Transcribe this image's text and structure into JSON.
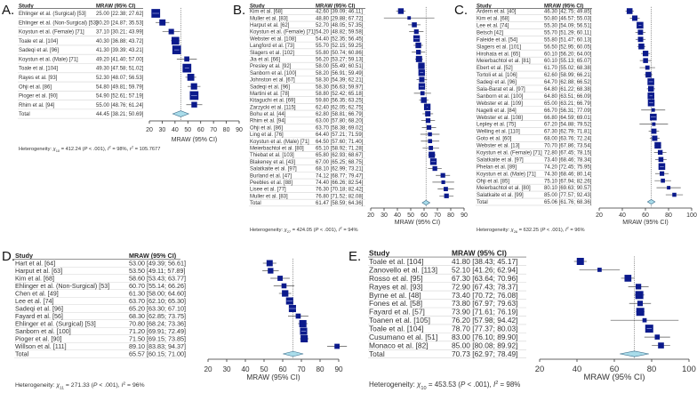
{
  "symbols": {
    "chi": "χ",
    "p": "P",
    "i": "I",
    "tau": "τ",
    "sq": "2",
    "prefix": "Heterogeneity: "
  },
  "chart_data": [
    {
      "type": "forest",
      "label": "A.",
      "header": {
        "study": "Study",
        "mraw": "MRAW (95% CI)"
      },
      "xlabel": "MRAW (95% CI)",
      "xlim": [
        20,
        90
      ],
      "ticks": [
        20,
        30,
        40,
        50,
        60,
        70,
        80,
        90
      ],
      "rows": [
        {
          "study": "Ehlinger et al. (Surgical) [53]",
          "mraw": "25.00 [22.38; 27.62]"
        },
        {
          "study": "Ehlinger et al. (Non-Surgical) [53]",
          "mraw": "30.20 [24.87; 35.53]"
        },
        {
          "study": "Koystun et al. (Female) [71]",
          "mraw": "37.10 [30.21; 43.99]"
        },
        {
          "study": "Toale et al. [104]",
          "mraw": "40.30 [36.88; 43.72]"
        },
        {
          "study": "Sadeqi et al. [96]",
          "mraw": "41.30 [39.39; 43.21]"
        },
        {
          "study": "Koystun et al. (Male) [71]",
          "mraw": "49.20 [41.40; 57.00]"
        },
        {
          "study": "Toale et al. [104]",
          "mraw": "49.30 [47.58; 51.02]"
        },
        {
          "study": "Rayes et al. [93]",
          "mraw": "52.30 [48.07; 56.53]"
        },
        {
          "study": "Ohji et al. [86]",
          "mraw": "54.80 [49.81; 59.79]"
        },
        {
          "study": "Pioger et al. [90]",
          "mraw": "54.90 [52.61; 57.19]"
        },
        {
          "study": "Rhim et al. [94]",
          "mraw": "55.00 [48.76; 61.24]"
        }
      ],
      "total": {
        "study": "Total",
        "mraw": "44.45 [38.21; 50.69]"
      },
      "heterogeneity": {
        "df": "10",
        "chi2": "412.24",
        "p": "< .001",
        "i2": "98%",
        "tau2": "105.7677"
      }
    },
    {
      "type": "forest",
      "label": "B.",
      "header": {
        "study": "Study",
        "mraw": "MRAW (95% CI)"
      },
      "xlabel": "MRAW (95% CI)",
      "xlim": [
        20,
        90
      ],
      "ticks": [
        20,
        30,
        40,
        50,
        60,
        70,
        80,
        90
      ],
      "rows": [
        {
          "study": "Kim et al. [68]",
          "mraw": "42.60 [39.09; 46.11]"
        },
        {
          "study": "Muller et al. [83]",
          "mraw": "48.80 [29.88; 67.72]"
        },
        {
          "study": "Harput et al. [62]",
          "mraw": "52.70 [48.05; 57.35]"
        },
        {
          "study": "Koystun et al. (Female) [71]",
          "mraw": "54.20 [48.82; 59.58]"
        },
        {
          "study": "Webster et al. [108]",
          "mraw": "54.40 [52.35; 56.45]"
        },
        {
          "study": "Langford et al. [73]",
          "mraw": "55.70 [52.15; 59.25]"
        },
        {
          "study": "Slagers et al. [102]",
          "mraw": "55.80 [50.74; 60.86]"
        },
        {
          "study": "Jia et al. [66]",
          "mraw": "56.20 [53.27; 59.13]"
        },
        {
          "study": "Presley et al. [92]",
          "mraw": "58.00 [55.49; 60.51]"
        },
        {
          "study": "Sanborn et al. [100]",
          "mraw": "58.20 [56.91; 59.49]"
        },
        {
          "study": "Johnston et al. [67]",
          "mraw": "58.30 [54.39; 62.21]"
        },
        {
          "study": "Sadeqi et al. [96]",
          "mraw": "58.30 [56.63; 59.97]"
        },
        {
          "study": "Martini et al. [78]",
          "mraw": "58.80 [52.42; 65.18]"
        },
        {
          "study": "Kitaguchi et al. [69]",
          "mraw": "59.80 [56.35; 63.25]"
        },
        {
          "study": "Zarzycki et al. [115]",
          "mraw": "62.40 [62.05; 62.75]"
        },
        {
          "study": "Bohu et al. [44]",
          "mraw": "62.80 [58.81; 66.79]"
        },
        {
          "study": "Rhim et al. [94]",
          "mraw": "63.00 [57.80; 68.20]"
        },
        {
          "study": "Ohji et al. [86]",
          "mraw": "63.70 [58.38; 69.02]"
        },
        {
          "study": "Ling et al. [76]",
          "mraw": "64.40 [57.21; 71.59]"
        },
        {
          "study": "Koystun et al. (Male) [71]",
          "mraw": "64.50 [57.60; 71.40]"
        },
        {
          "study": "Meierbachtol et al. [80]",
          "mraw": "65.10 [58.92; 71.28]"
        },
        {
          "study": "Thiebat et al. [103]",
          "mraw": "65.80 [62.93; 68.67]"
        },
        {
          "study": "Blakeney et al. [43]",
          "mraw": "67.00 [65.25; 68.75]"
        },
        {
          "study": "Salatkaite et al. [97]",
          "mraw": "68.10 [62.99; 73.21]"
        },
        {
          "study": "Burland et al. [47]",
          "mraw": "74.12 [68.77; 79.47]"
        },
        {
          "study": "Peebles et al. [88]",
          "mraw": "74.40 [66.26; 82.54]"
        },
        {
          "study": "Lisee et al. [77]",
          "mraw": "76.30 [70.18; 82.42]"
        },
        {
          "study": "Muller et al. [83]",
          "mraw": "76.80 [71.52; 82.08]"
        }
      ],
      "total": {
        "study": "Total",
        "mraw": "61.47 [58.59; 64.36]"
      },
      "heterogeneity": {
        "df": "27",
        "chi2": "424.05",
        "p": "< .001",
        "i2": "94%"
      }
    },
    {
      "type": "forest",
      "label": "C.",
      "header": {
        "study": "Study",
        "mraw": "MRAW (95% CI)"
      },
      "xlabel": "MRAW (95% CI)",
      "xlim": [
        20,
        100
      ],
      "ticks": [
        20,
        40,
        60,
        80,
        100
      ],
      "rows": [
        {
          "study": "Ardern et al. [40]",
          "mraw": "46.30 [42.75; 49.85]"
        },
        {
          "study": "Kim et al. [68]",
          "mraw": "50.80 [46.57; 55.03]"
        },
        {
          "study": "Lee et al. [74]",
          "mraw": "55.30 [54.09; 56.51]"
        },
        {
          "study": "Betsch [42]",
          "mraw": "55.70 [51.29; 60.11]"
        },
        {
          "study": "Faleide et al. [54]",
          "mraw": "55.80 [51.47; 60.13]"
        },
        {
          "study": "Slagers et al. [101]",
          "mraw": "56.50 [52.95; 60.05]"
        },
        {
          "study": "Hirohata et al. [65]",
          "mraw": "60.10 [56.20; 64.00]"
        },
        {
          "study": "Meierbachtol et al. [81]",
          "mraw": "60.10 [55.13; 65.07]"
        },
        {
          "study": "Ebert et al. [52]",
          "mraw": "61.70 [55.02; 68.38]"
        },
        {
          "study": "Tortoli et al. [106]",
          "mraw": "62.60 [58.99; 66.21]"
        },
        {
          "study": "Sadeqi et al. [96]",
          "mraw": "64.70 [62.88; 66.52]"
        },
        {
          "study": "Sala-Barat et al. [97]",
          "mraw": "64.80 [61.22; 68.38]"
        },
        {
          "study": "Sanborn et al. [100]",
          "mraw": "64.80 [63.51; 66.09]"
        },
        {
          "study": "Webster et al. [109]",
          "mraw": "65.00 [63.21; 66.79]"
        },
        {
          "study": "Nagelli et al. [84]",
          "mraw": "66.70 [56.31; 77.09]"
        },
        {
          "study": "Webster et al. [108]",
          "mraw": "66.80 [64.59; 69.01]"
        },
        {
          "study": "Lepley et al. [75]",
          "mraw": "67.20 [54.88; 79.52]"
        },
        {
          "study": "Welling et al. [110]",
          "mraw": "67.30 [62.79; 71.81]"
        },
        {
          "study": "Goto et al. [60]",
          "mraw": "68.00 [63.76; 72.24]"
        },
        {
          "study": "Webster et al. [13]",
          "mraw": "70.70 [67.86; 73.54]"
        },
        {
          "study": "Koystun et al. (Female) [71]",
          "mraw": "72.80 [67.45; 78.15]"
        },
        {
          "study": "Salatkaite et al. [97]",
          "mraw": "73.40 [68.46; 78.34]"
        },
        {
          "study": "Phelan et al. [89]",
          "mraw": "74.20 [72.45; 75.95]"
        },
        {
          "study": "Koystun et al. (Male) [71]",
          "mraw": "74.30 [68.46; 80.14]"
        },
        {
          "study": "Ohji et al. [85]",
          "mraw": "75.10 [67.94; 82.26]"
        },
        {
          "study": "Meierbachtol et al. [80]",
          "mraw": "80.10 [69.63; 90.57]"
        },
        {
          "study": "Salatkaite et al. [99]",
          "mraw": "85.00 [77.57; 92.43]"
        }
      ],
      "total": {
        "study": "Total",
        "mraw": "65.06 [61.76; 68.36]"
      },
      "heterogeneity": {
        "df": "26",
        "chi2": "632.25",
        "p": "< .001",
        "i2": "96%"
      }
    },
    {
      "type": "forest",
      "label": "D.",
      "header": {
        "study": "Study",
        "mraw": "MRAW (95% CI)"
      },
      "xlabel": "MRAW (95% CI)",
      "xlim": [
        20,
        90
      ],
      "ticks": [
        20,
        30,
        40,
        50,
        60,
        70,
        80,
        90
      ],
      "rows": [
        {
          "study": "Hart et al. [64]",
          "mraw": "53.00 [49.39; 56.61]"
        },
        {
          "study": "Harput et al. [63]",
          "mraw": "53.50 [49.11; 57.89]"
        },
        {
          "study": "Kim et al. [68]",
          "mraw": "58.60 [53.43; 63.77]"
        },
        {
          "study": "Ehlinger et al. (Non-Surgical) [53]",
          "mraw": "60.70 [55.14; 66.26]"
        },
        {
          "study": "Chen et al. [49]",
          "mraw": "61.30 [58.00; 64.60]"
        },
        {
          "study": "Lee et al. [74]",
          "mraw": "63.70 [62.10; 65.30]"
        },
        {
          "study": "Sadeqi et al. [96]",
          "mraw": "65.20 [63.30; 67.10]"
        },
        {
          "study": "Fayard et al. [56]",
          "mraw": "68.30 [62.85; 73.75]"
        },
        {
          "study": "Ehlinger et al. (Surgical) [53]",
          "mraw": "70.80 [68.24; 73.36]"
        },
        {
          "study": "Sanborn et al. [100]",
          "mraw": "71.20 [69.91; 72.49]"
        },
        {
          "study": "Pioger et al. [90]",
          "mraw": "71.50 [69.15; 73.85]"
        },
        {
          "study": "Willson et al. [111]",
          "mraw": "89.10 [83.83; 94.37]"
        }
      ],
      "total": {
        "study": "Total",
        "mraw": "65.57 [60.15; 71.00]"
      },
      "heterogeneity": {
        "df": "11",
        "chi2": "271.33",
        "p": "< .001",
        "i2": "96%"
      }
    },
    {
      "type": "forest",
      "label": "E.",
      "header": {
        "study": "Study",
        "mraw": "MRAW (95% CI)"
      },
      "xlabel": "MRAW (95% CI)",
      "xlim": [
        20,
        100
      ],
      "ticks": [
        20,
        40,
        60,
        80,
        100
      ],
      "rows": [
        {
          "study": "Toale et al. [104]",
          "mraw": "41.80 [38.43; 45.17]"
        },
        {
          "study": "Zanovello et al. [113]",
          "mraw": "52.10 [41.26; 62.94]"
        },
        {
          "study": "Rosso et al. [95]",
          "mraw": "67.30 [63.64; 70.96]"
        },
        {
          "study": "Rayes et al. [93]",
          "mraw": "72.90 [67.43; 78.37]"
        },
        {
          "study": "Byrne et al. [48]",
          "mraw": "73.40 [70.72; 76.08]"
        },
        {
          "study": "Fones et al. [58]",
          "mraw": "73.80 [67.97; 79.63]"
        },
        {
          "study": "Fayard et al. [57]",
          "mraw": "73.90 [71.61; 76.19]"
        },
        {
          "study": "Toanen et al. [105]",
          "mraw": "76.20 [57.98; 94.42]"
        },
        {
          "study": "Toale et al. [104]",
          "mraw": "78.70 [77.37; 80.03]"
        },
        {
          "study": "Cusumano et al. [51]",
          "mraw": "83.00 [76.10; 89.90]"
        },
        {
          "study": "Monaco et al. [82]",
          "mraw": "85.00 [80.08; 89.92]"
        }
      ],
      "total": {
        "study": "Total",
        "mraw": "70.73 [62.97; 78.49]"
      },
      "heterogeneity": {
        "df": "10",
        "chi2": "453.53",
        "p": "< .001",
        "i2": "98%"
      }
    }
  ]
}
